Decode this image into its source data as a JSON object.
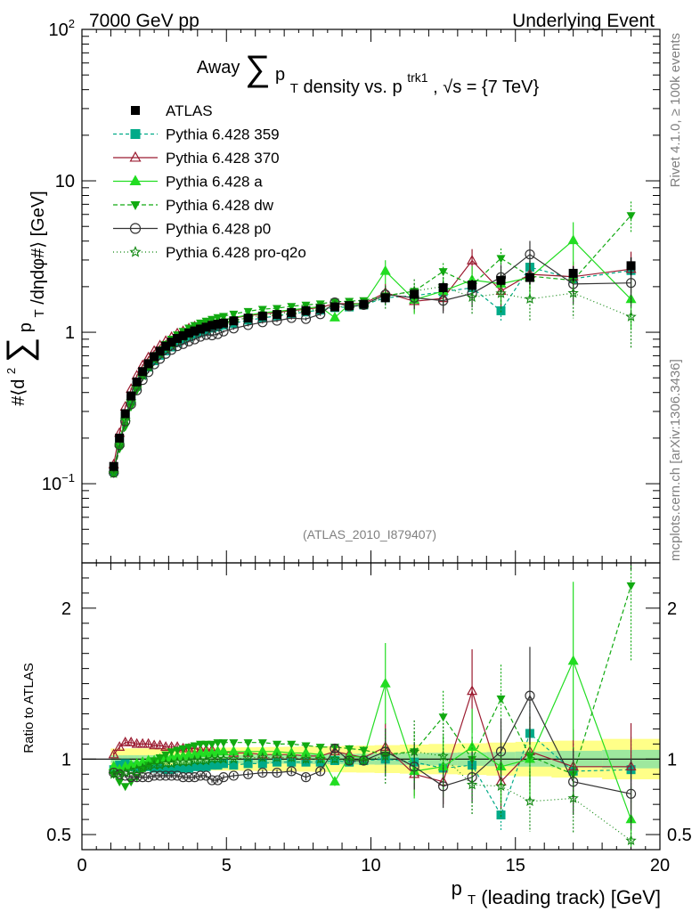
{
  "header": {
    "left": "7000 GeV pp",
    "right": "Underlying Event"
  },
  "side_labels": {
    "rivet": "Rivet 4.1.0, ≥ 100k events",
    "mcplots": "mcplots.cern.ch [arXiv:1306.3436]"
  },
  "watermark": "(ATLAS_2010_I879407)",
  "chart_data": {
    "type": "line",
    "title": "Away ∑ p_T density vs. p_T^trk1, √s = {7 TeV}",
    "title_parts": {
      "a": "Away",
      "sum": "∑",
      "p": "p",
      "t": "T",
      "b": "density vs. p",
      "sup": "trk1",
      "c": ", √s = {7 TeV}"
    },
    "xlabel": "p_T (leading track) [GeV]",
    "xlabel_parts": {
      "p": "p",
      "t": "T",
      "rest": "(leading track) [GeV]"
    },
    "ylabel": "#⟨d² ∑ p_T /dηdφ#⟩ [GeV]",
    "ylabel_parts": {
      "a": "#⟨d",
      "sq": "2",
      "sum": "∑",
      "p": "p",
      "t": "T",
      "b": "/dηdφ#⟩ [GeV]"
    },
    "ratio_label": "Ratio to ATLAS",
    "xlim": [
      0,
      20
    ],
    "ylim": [
      0.03,
      100
    ],
    "ratio_ylim": [
      0.4,
      2.3
    ],
    "x_ticks": [
      0,
      5,
      10,
      15,
      20
    ],
    "y_ticks": [
      {
        "value": 0.1,
        "base": "10",
        "exp": "−1"
      },
      {
        "value": 1,
        "base": "1",
        "exp": ""
      },
      {
        "value": 10,
        "base": "10",
        "exp": ""
      },
      {
        "value": 100,
        "base": "10",
        "exp": "2"
      }
    ],
    "ratio_ticks": [
      0.5,
      1,
      2
    ],
    "x": [
      1.1,
      1.3,
      1.5,
      1.7,
      1.9,
      2.1,
      2.3,
      2.5,
      2.7,
      2.9,
      3.1,
      3.3,
      3.5,
      3.7,
      3.9,
      4.1,
      4.3,
      4.5,
      4.7,
      4.9,
      5.25,
      5.75,
      6.25,
      6.75,
      7.25,
      7.75,
      8.25,
      8.75,
      9.25,
      9.75,
      10.5,
      11.5,
      12.5,
      13.5,
      14.5,
      15.5,
      17,
      19
    ],
    "atlas": {
      "name": "ATLAS",
      "color": "#000000",
      "values": [
        0.13,
        0.2,
        0.29,
        0.38,
        0.47,
        0.55,
        0.62,
        0.69,
        0.75,
        0.81,
        0.86,
        0.91,
        0.95,
        0.99,
        1.02,
        1.05,
        1.08,
        1.11,
        1.13,
        1.15,
        1.19,
        1.24,
        1.28,
        1.31,
        1.35,
        1.39,
        1.43,
        1.47,
        1.5,
        1.53,
        1.69,
        1.78,
        1.97,
        2.05,
        2.2,
        2.3,
        2.45,
        2.75
      ]
    },
    "series": [
      {
        "name": "Pythia 6.428 359",
        "color": "#00aa88",
        "dash": "4,3",
        "marker": "square",
        "ratio": [
          0.93,
          0.96,
          0.97,
          0.95,
          0.94,
          0.95,
          0.95,
          0.94,
          0.94,
          0.93,
          0.93,
          0.94,
          0.94,
          0.94,
          0.95,
          0.95,
          0.95,
          0.96,
          0.96,
          0.97,
          0.96,
          0.97,
          0.97,
          0.98,
          0.98,
          0.98,
          0.98,
          0.99,
          0.98,
          0.99,
          1.0,
          0.98,
          0.94,
          0.96,
          0.63,
          1.17,
          0.92,
          0.93
        ]
      },
      {
        "name": "Pythia 6.428 370",
        "color": "#9b1b30",
        "dash": "",
        "marker": "triangle-open",
        "ratio": [
          1.03,
          1.08,
          1.11,
          1.11,
          1.1,
          1.1,
          1.1,
          1.09,
          1.09,
          1.08,
          1.08,
          1.08,
          1.07,
          1.07,
          1.07,
          1.06,
          1.06,
          1.06,
          1.05,
          1.05,
          1.04,
          1.04,
          1.03,
          1.03,
          1.03,
          1.02,
          1.02,
          1.05,
          1.03,
          1.01,
          1.08,
          0.9,
          0.85,
          1.45,
          0.85,
          1.05,
          0.95,
          0.95
        ]
      },
      {
        "name": "Pythia 6.428 a",
        "color": "#22dd22",
        "dash": "",
        "marker": "triangle",
        "ratio": [
          0.95,
          0.93,
          0.95,
          0.96,
          0.97,
          0.98,
          0.99,
          0.99,
          1.0,
          1.01,
          1.01,
          1.02,
          1.02,
          1.03,
          1.03,
          1.04,
          1.04,
          1.04,
          1.05,
          1.05,
          1.05,
          1.05,
          1.05,
          1.05,
          1.04,
          1.04,
          1.03,
          0.85,
          1.02,
          1.01,
          1.5,
          0.92,
          0.95,
          1.08,
          0.95,
          1.0,
          1.65,
          0.6
        ]
      },
      {
        "name": "Pythia 6.428 dw",
        "color": "#11aa11",
        "dash": "5,3",
        "marker": "triangle-down",
        "ratio": [
          0.9,
          0.85,
          0.82,
          0.85,
          0.88,
          0.93,
          0.96,
          0.99,
          1.01,
          1.03,
          1.05,
          1.06,
          1.07,
          1.08,
          1.09,
          1.1,
          1.1,
          1.1,
          1.11,
          1.11,
          1.11,
          1.11,
          1.11,
          1.1,
          1.1,
          1.09,
          1.08,
          1.08,
          1.07,
          1.06,
          1.03,
          1.05,
          1.28,
          1.0,
          1.4,
          1.02,
          0.9,
          2.15
        ]
      },
      {
        "name": "Pythia 6.428 p0",
        "color": "#333333",
        "dash": "",
        "marker": "circle-open",
        "ratio": [
          0.91,
          0.9,
          0.89,
          0.88,
          0.88,
          0.88,
          0.88,
          0.89,
          0.89,
          0.89,
          0.89,
          0.89,
          0.88,
          0.88,
          0.88,
          0.89,
          0.89,
          0.86,
          0.86,
          0.88,
          0.89,
          0.9,
          0.91,
          0.91,
          0.92,
          0.88,
          0.92,
          1.07,
          0.99,
          0.99,
          1.05,
          0.95,
          0.82,
          0.88,
          1.05,
          1.42,
          0.85,
          0.77
        ]
      },
      {
        "name": "Pythia 6.428 pro-q2o",
        "color": "#118811",
        "dash": "1,3",
        "marker": "star",
        "ratio": [
          0.9,
          0.9,
          0.91,
          0.92,
          0.93,
          0.94,
          0.95,
          0.96,
          0.96,
          0.97,
          0.97,
          0.98,
          0.98,
          0.98,
          0.99,
          0.99,
          0.99,
          1.0,
          1.0,
          1.0,
          1.0,
          1.01,
          1.01,
          1.01,
          1.01,
          1.0,
          1.0,
          1.0,
          0.99,
          0.99,
          1.02,
          1.05,
          1.02,
          0.83,
          0.82,
          0.72,
          0.74,
          0.46
        ]
      }
    ]
  }
}
